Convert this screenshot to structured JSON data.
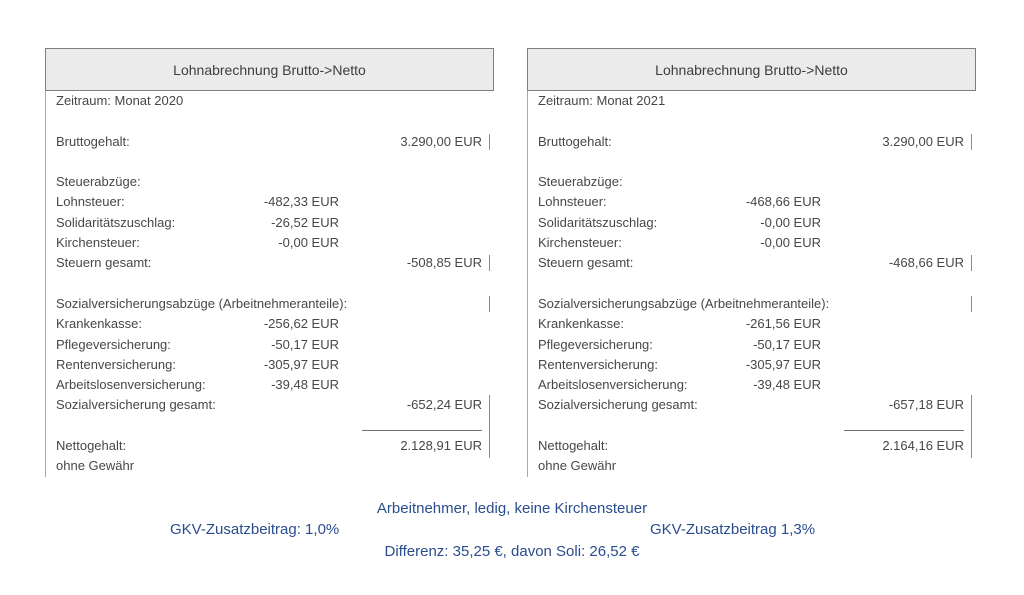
{
  "colors": {
    "footer_blue": "#2a4d8e",
    "header_bg": "#ebebeb",
    "panel_border": "#7f7f7f",
    "body_text": "#474747"
  },
  "panels": [
    {
      "title": "Lohnabrechnung Brutto->Netto",
      "zeitraum": "Zeitraum: Monat 2020",
      "bruttogehalt_label": "Bruttogehalt:",
      "bruttogehalt": "3.290,00 EUR",
      "steuerabzuege_label": "Steuerabzüge:",
      "lohnsteuer_label": "Lohnsteuer:",
      "lohnsteuer": "-482,33 EUR",
      "soli_label": "Solidaritätszuschlag:",
      "soli": "-26,52 EUR",
      "kirchensteuer_label": "Kirchensteuer:",
      "kirchensteuer": "-0,00 EUR",
      "steuern_gesamt_label": "Steuern gesamt:",
      "steuern_gesamt": "-508,85 EUR",
      "sozial_header": "Sozialversicherungsabzüge (Arbeitnehmeranteile):",
      "krankenkasse_label": "Krankenkasse:",
      "krankenkasse": "-256,62 EUR",
      "pflege_label": "Pflegeversicherung:",
      "pflege": "-50,17 EUR",
      "rente_label": "Rentenversicherung:",
      "rente": "-305,97 EUR",
      "arbeitslosen_label": "Arbeitslosenversicherung:",
      "arbeitslosen": "-39,48 EUR",
      "sozial_gesamt_label": "Sozialversicherung gesamt:",
      "sozial_gesamt": "-652,24 EUR",
      "netto_label": "Nettogehalt:",
      "netto": "2.128,91 EUR",
      "disclaimer": "ohne Gewähr"
    },
    {
      "title": "Lohnabrechnung Brutto->Netto",
      "zeitraum": "Zeitraum: Monat 2021",
      "bruttogehalt_label": "Bruttogehalt:",
      "bruttogehalt": "3.290,00 EUR",
      "steuerabzuege_label": "Steuerabzüge:",
      "lohnsteuer_label": "Lohnsteuer:",
      "lohnsteuer": "-468,66 EUR",
      "soli_label": "Solidaritätszuschlag:",
      "soli": "-0,00 EUR",
      "kirchensteuer_label": "Kirchensteuer:",
      "kirchensteuer": "-0,00 EUR",
      "steuern_gesamt_label": "Steuern gesamt:",
      "steuern_gesamt": "-468,66 EUR",
      "sozial_header": "Sozialversicherungsabzüge (Arbeitnehmeranteile):",
      "krankenkasse_label": "Krankenkasse:",
      "krankenkasse": "-261,56 EUR",
      "pflege_label": "Pflegeversicherung:",
      "pflege": "-50,17 EUR",
      "rente_label": "Rentenversicherung:",
      "rente": "-305,97 EUR",
      "arbeitslosen_label": "Arbeitslosenversicherung:",
      "arbeitslosen": "-39,48 EUR",
      "sozial_gesamt_label": "Sozialversicherung gesamt:",
      "sozial_gesamt": "-657,18 EUR",
      "netto_label": "Nettogehalt:",
      "netto": "2.164,16 EUR",
      "disclaimer": "ohne Gewähr"
    }
  ],
  "footer": {
    "line1": "Arbeitnehmer, ledig, keine Kirchensteuer",
    "line2_left": "GKV-Zusatzbeitrag: 1,0%",
    "line2_right": "GKV-Zusatzbeitrag 1,3%",
    "line3": "Differenz: 35,25 €, davon Soli: 26,52 €"
  }
}
